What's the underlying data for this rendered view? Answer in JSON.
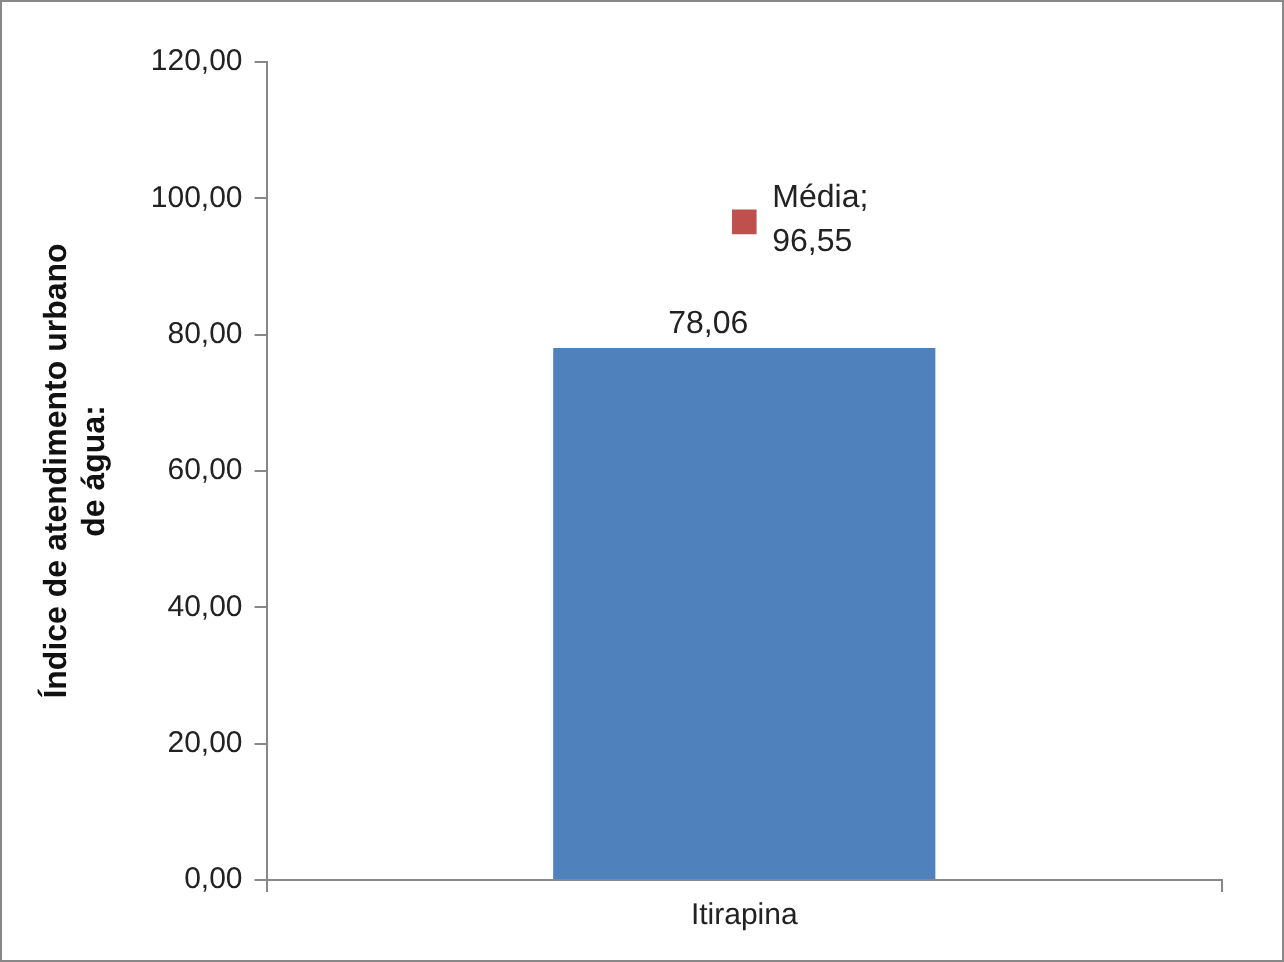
{
  "chart_data": {
    "type": "bar",
    "ylabel": "Índice de atendimento urbano de água:",
    "categories": [
      "Itirapina"
    ],
    "series": [
      {
        "color": "#4f81bd",
        "values": [
          78.06
        ],
        "value_labels": [
          "78,06"
        ]
      },
      {
        "type": "scatter",
        "name": "Média;",
        "color": "#c0504d",
        "x": [
          "Itirapina"
        ],
        "values": [
          96.55
        ],
        "value_labels": [
          "96,55"
        ]
      }
    ],
    "ylim": [
      0,
      120
    ],
    "yticks": [
      {
        "value": 0,
        "label": "0,00"
      },
      {
        "value": 20,
        "label": "20,00"
      },
      {
        "value": 40,
        "label": "40,00"
      },
      {
        "value": 60,
        "label": "60,00"
      },
      {
        "value": 80,
        "label": "80,00"
      },
      {
        "value": 100,
        "label": "100,00"
      },
      {
        "value": 120,
        "label": "120,00"
      }
    ],
    "grid": false,
    "legend": false,
    "marker": "square"
  }
}
